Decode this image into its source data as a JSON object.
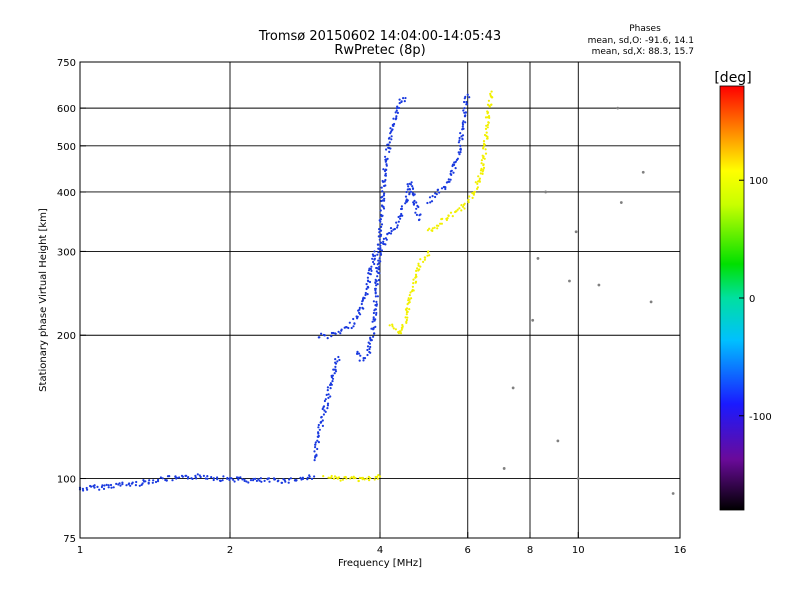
{
  "chart_data": {
    "type": "scatter",
    "title": "Tromsø 20150602 14:04:00-14:05:43",
    "subtitle": "RwPretec (8p)",
    "xlabel": "Frequency [MHz]",
    "ylabel": "Stationary phase Virtual Height [km]",
    "xscale": "log",
    "yscale": "log",
    "xlim": [
      1,
      16
    ],
    "ylim": [
      75,
      750
    ],
    "x_ticks": [
      1,
      2,
      4,
      6,
      8,
      10,
      16
    ],
    "x_tick_labels": [
      "1",
      "2",
      "4",
      "6",
      "8",
      "10",
      "16"
    ],
    "y_ticks": [
      75,
      100,
      200,
      300,
      400,
      500,
      600,
      750
    ],
    "y_tick_labels": [
      "75",
      "100",
      "200",
      "300",
      "400",
      "500",
      "600",
      "750"
    ],
    "grid": true,
    "phase_stats": {
      "heading": "Phases",
      "line_o": "mean, sd,O: -91.6, 14.1",
      "line_x": "mean, sd,X:  88.3, 15.7"
    },
    "colorbar": {
      "label": "[deg]",
      "range": [
        -180,
        180
      ],
      "ticks": [
        100,
        0,
        -100
      ],
      "tick_labels": [
        "100",
        "0",
        "-100"
      ]
    },
    "series": [
      {
        "mode": "O",
        "phase": -95,
        "color": "#1a3adf",
        "traces": [
          {
            "x": [
              1.0,
              1.1,
              1.2,
              1.3,
              1.4,
              1.5,
              1.6,
              1.7,
              1.8,
              1.9,
              2.0,
              2.2,
              2.4,
              2.6,
              2.8,
              2.95
            ],
            "y": [
              95,
              96,
              97,
              97.5,
              99,
              100,
              100,
              101,
              101,
              100,
              100,
              99,
              99,
              99,
              100,
              101
            ]
          },
          {
            "x": [
              3.0,
              3.1,
              3.2,
              3.3,
              3.4,
              3.5,
              3.6,
              3.7,
              3.75,
              3.8,
              3.85,
              3.9
            ],
            "y": [
              200,
              199,
              200,
              202,
              205,
              210,
              218,
              230,
              245,
              260,
              280,
              300
            ]
          },
          {
            "x": [
              3.6,
              3.65,
              3.7,
              3.75,
              3.8,
              3.85,
              3.9,
              3.95,
              4.0,
              4.05,
              4.1,
              4.2,
              4.3,
              4.4,
              4.5
            ],
            "y": [
              185,
              180,
              178,
              180,
              184,
              195,
              220,
              260,
              320,
              380,
              460,
              520,
              580,
              620,
              630
            ]
          },
          {
            "x": [
              4.0,
              4.1,
              4.2,
              4.3,
              4.4,
              4.5,
              4.6,
              4.7,
              4.8
            ],
            "y": [
              300,
              320,
              330,
              340,
              355,
              380,
              420,
              380,
              350
            ]
          },
          {
            "x": [
              5.0,
              5.2,
              5.4,
              5.5,
              5.6,
              5.7,
              5.8,
              5.85,
              5.9,
              5.95,
              6.0
            ],
            "y": [
              380,
              400,
              410,
              420,
              440,
              470,
              500,
              540,
              580,
              620,
              640
            ]
          },
          {
            "x": [
              2.95,
              3.0,
              3.05,
              3.1,
              3.15,
              3.2,
              3.25,
              3.3
            ],
            "y": [
              110,
              120,
              130,
              140,
              150,
              160,
              170,
              180
            ]
          }
        ]
      },
      {
        "mode": "X",
        "phase": 88,
        "color": "#f2f000",
        "traces": [
          {
            "x": [
              3.1,
              3.2,
              3.3,
              3.4,
              3.5,
              3.6,
              3.7,
              3.8,
              3.9,
              4.0
            ],
            "y": [
              100,
              100,
              100,
              100,
              100,
              100,
              100,
              100,
              100,
              101
            ]
          },
          {
            "x": [
              4.2,
              4.3,
              4.4,
              4.5,
              4.6,
              4.7,
              4.8,
              4.9,
              5.0
            ],
            "y": [
              210,
              205,
              202,
              215,
              240,
              260,
              280,
              290,
              300
            ]
          },
          {
            "x": [
              5.0,
              5.2,
              5.4,
              5.6,
              5.8,
              6.0,
              6.2,
              6.4,
              6.5,
              6.6,
              6.7
            ],
            "y": [
              330,
              340,
              350,
              360,
              370,
              380,
              400,
              440,
              500,
              580,
              650
            ]
          }
        ]
      },
      {
        "mode": "scattered",
        "phase": 0,
        "color": "#808080",
        "traces": [
          {
            "x": [
              7.1,
              7.4,
              8.1,
              8.3,
              8.6,
              9.1,
              9.6,
              9.9,
              10.0,
              11.0,
              12.0,
              12.2,
              13.5,
              14.0,
              15.5
            ],
            "y": [
              105,
              155,
              215,
              290,
              400,
              120,
              260,
              330,
              100,
              255,
              600,
              380,
              440,
              235,
              93
            ]
          }
        ]
      }
    ]
  }
}
